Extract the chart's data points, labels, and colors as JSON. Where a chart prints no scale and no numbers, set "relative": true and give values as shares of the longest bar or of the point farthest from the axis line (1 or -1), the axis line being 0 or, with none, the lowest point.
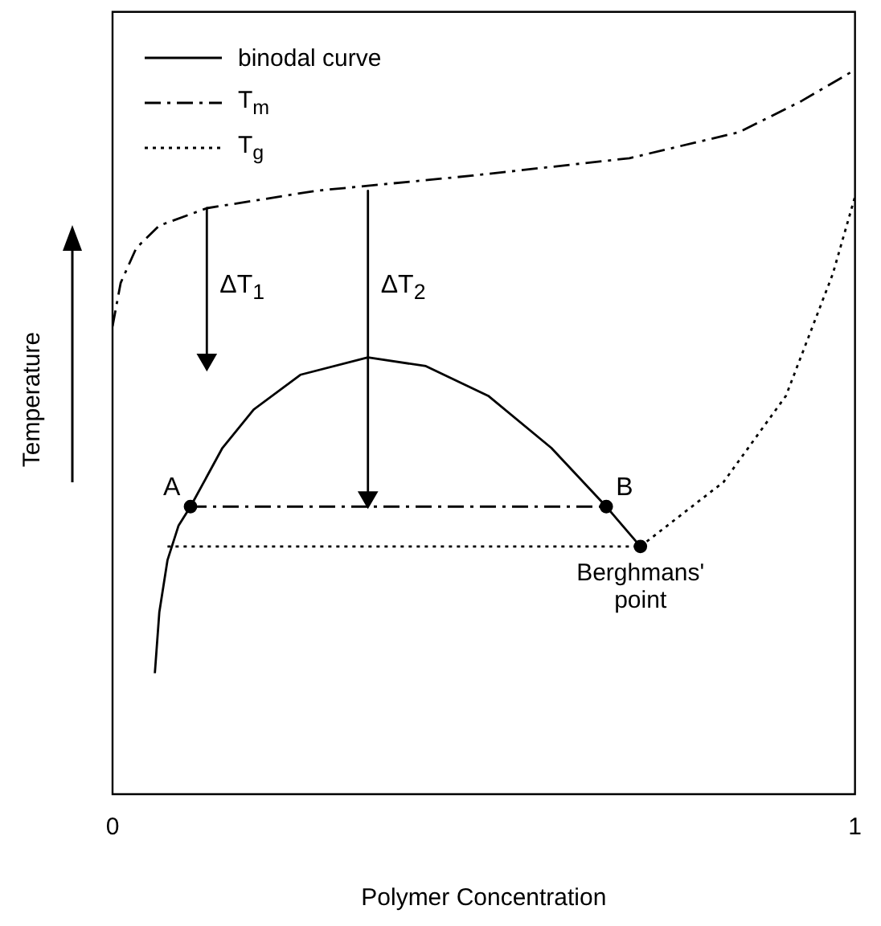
{
  "chart_data": {
    "type": "line",
    "relative": true,
    "xlabel": "Polymer Concentration",
    "ylabel": "Temperature",
    "xlim": [
      0,
      1
    ],
    "xticks": [
      0,
      1
    ],
    "legend": "top left",
    "marker": "none",
    "series": [
      {
        "name": "binodal curve",
        "color": "#000000",
        "line_style": "solid",
        "x": [
          0.057,
          0.063,
          0.074,
          0.089,
          0.105,
          0.148,
          0.19,
          0.253,
          0.344,
          0.422,
          0.506,
          0.591,
          0.665,
          0.711
        ],
        "values": [
          0.167,
          0.251,
          0.323,
          0.371,
          0.397,
          0.478,
          0.531,
          0.579,
          0.603,
          0.591,
          0.55,
          0.478,
          0.397,
          0.342
        ]
      },
      {
        "name": "T$_{m}$",
        "color": "#000000",
        "line_style": "dashed",
        "x": [
          0,
          0.011,
          0.032,
          0.063,
          0.127,
          0.274,
          0.485,
          0.696,
          0.844,
          0.928,
          1
        ],
        "values": [
          0.646,
          0.706,
          0.754,
          0.785,
          0.809,
          0.833,
          0.854,
          0.878,
          0.914,
          0.957,
          1
        ]
      },
      {
        "name": "T$_{g}$",
        "color": "#000000",
        "line_style": "dotted",
        "x": [
          0.711,
          0.823,
          0.907,
          0.97,
          1
        ],
        "values": [
          0.342,
          0.431,
          0.55,
          0.718,
          0.825
        ]
      },
      {
        "color": "#000000",
        "line_style": "dotted",
        "x": [
          0.074,
          0.711
        ],
        "values": [
          0.342,
          0.342
        ]
      },
      {
        "color": "#000000",
        "line_style": "dashed",
        "x": [
          0.105,
          0.665
        ],
        "values": [
          0.397,
          0.397
        ]
      },
      {
        "color": "#000000",
        "line_style": "solid",
        "marker": "triangle",
        "x": [
          0.127,
          0.127
        ],
        "values": [
          0.809,
          0.6
        ]
      },
      {
        "color": "#000000",
        "line_style": "solid",
        "marker": "triangle",
        "x": [
          0.344,
          0.344
        ],
        "values": [
          0.833,
          0.41
        ]
      },
      {
        "type": "scatter",
        "color": "#000000",
        "marker": "circle",
        "x": [
          0.105,
          0.665,
          0.711
        ],
        "values": [
          0.397,
          0.397,
          0.342
        ]
      }
    ],
    "annotations": [
      {
        "text": "A",
        "x": 0.105,
        "y": 0.397
      },
      {
        "text": "B",
        "x": 0.665,
        "y": 0.397
      },
      {
        "text": "Berghmans' point",
        "x": 0.711,
        "y": 0.342
      },
      {
        "text": "ΔT$_{1}$",
        "x": 0.127,
        "y": 0.7
      },
      {
        "text": "ΔT$_{2}$",
        "x": 0.344,
        "y": 0.7
      }
    ]
  }
}
